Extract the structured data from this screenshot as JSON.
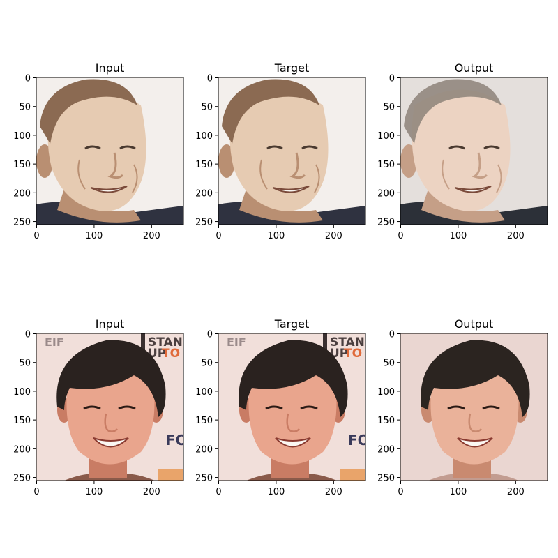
{
  "panels": [
    {
      "title": "Input",
      "subject": "older man, sepia-tinted portrait, smiling, tilted head",
      "palette": {
        "bg": "#f3efec",
        "skin": "#e6cbb2",
        "skin_shade": "#b98f72",
        "hair": "#8b6a52",
        "clothes": "#2f3240"
      }
    },
    {
      "title": "Target",
      "subject": "older man, sepia-tinted portrait, smiling, tilted head",
      "palette": {
        "bg": "#f3efec",
        "skin": "#e6cbb2",
        "skin_shade": "#b98f72",
        "hair": "#8b6a52",
        "clothes": "#2f3240"
      }
    },
    {
      "title": "Output",
      "subject": "older man, reconstructed natural-color portrait, smiling",
      "palette": {
        "bg": "#e4dfdc",
        "skin": "#ecd3c2",
        "skin_shade": "#c59f87",
        "hair": "#8d8379",
        "clothes": "#2c3038"
      }
    },
    {
      "title": "Input",
      "subject": "smiling man with dark hair in front of event backdrop",
      "palette": {
        "bg": "#f1dfda",
        "skin": "#e9a58d",
        "skin_shade": "#c97c64",
        "hair": "#2a221f",
        "clothes": "#8a5a4a"
      }
    },
    {
      "title": "Target",
      "subject": "smiling man with dark hair in front of event backdrop",
      "palette": {
        "bg": "#f1dfda",
        "skin": "#e9a58d",
        "skin_shade": "#c97c64",
        "hair": "#2a221f",
        "clothes": "#8a5a4a"
      }
    },
    {
      "title": "Output",
      "subject": "smiling man with dark hair, reconstructed portrait",
      "palette": {
        "bg": "#ead6d1",
        "skin": "#eab29a",
        "skin_shade": "#c98a70",
        "hair": "#2b2420",
        "clothes": "#c29c90"
      }
    }
  ],
  "axes": {
    "x_ticks": [
      "0",
      "100",
      "200"
    ],
    "y_ticks": [
      "0",
      "50",
      "100",
      "150",
      "200",
      "250"
    ]
  },
  "backdrop_text": {
    "eif": "EIF",
    "stand": "STAND",
    "up": "UP",
    "to": "TO",
    "fo": "FO"
  }
}
